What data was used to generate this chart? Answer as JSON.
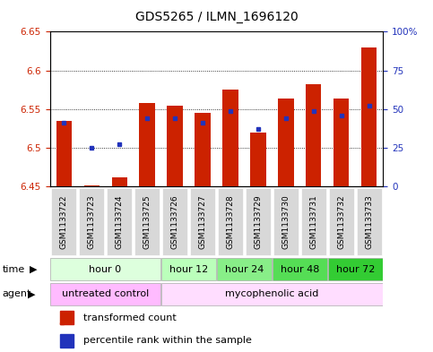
{
  "title": "GDS5265 / ILMN_1696120",
  "samples": [
    "GSM1133722",
    "GSM1133723",
    "GSM1133724",
    "GSM1133725",
    "GSM1133726",
    "GSM1133727",
    "GSM1133728",
    "GSM1133729",
    "GSM1133730",
    "GSM1133731",
    "GSM1133732",
    "GSM1133733"
  ],
  "bar_tops": [
    6.535,
    6.452,
    6.462,
    6.558,
    6.555,
    6.545,
    6.575,
    6.52,
    6.564,
    6.582,
    6.564,
    6.63
  ],
  "blue_values": [
    6.532,
    6.5,
    6.505,
    6.538,
    6.538,
    6.532,
    6.547,
    6.524,
    6.538,
    6.547,
    6.542,
    6.555
  ],
  "ylim_left": [
    6.45,
    6.65
  ],
  "ylim_right": [
    0,
    100
  ],
  "yticks_left": [
    6.45,
    6.5,
    6.55,
    6.6,
    6.65
  ],
  "yticks_right": [
    0,
    25,
    50,
    75,
    100
  ],
  "ytick_right_labels": [
    "0",
    "25",
    "50",
    "75",
    "100%"
  ],
  "bar_color": "#CC2200",
  "blue_color": "#2233BB",
  "time_groups": [
    {
      "label": "hour 0",
      "start": 0,
      "end": 4,
      "color": "#ddffdd"
    },
    {
      "label": "hour 12",
      "start": 4,
      "end": 6,
      "color": "#bbffbb"
    },
    {
      "label": "hour 24",
      "start": 6,
      "end": 8,
      "color": "#88ee88"
    },
    {
      "label": "hour 48",
      "start": 8,
      "end": 10,
      "color": "#55dd55"
    },
    {
      "label": "hour 72",
      "start": 10,
      "end": 12,
      "color": "#33cc33"
    }
  ],
  "agent_groups": [
    {
      "label": "untreated control",
      "start": 0,
      "end": 4,
      "color": "#ffbbff"
    },
    {
      "label": "mycophenolic acid",
      "start": 4,
      "end": 12,
      "color": "#ffddff"
    }
  ],
  "legend_red_label": "transformed count",
  "legend_blue_label": "percentile rank within the sample",
  "xlabel_time": "time",
  "xlabel_agent": "agent",
  "background_color": "#ffffff",
  "bar_width": 0.55,
  "title_fontsize": 10,
  "tick_fontsize": 7.5,
  "sample_fontsize": 6.5,
  "row_fontsize": 8,
  "legend_fontsize": 8
}
